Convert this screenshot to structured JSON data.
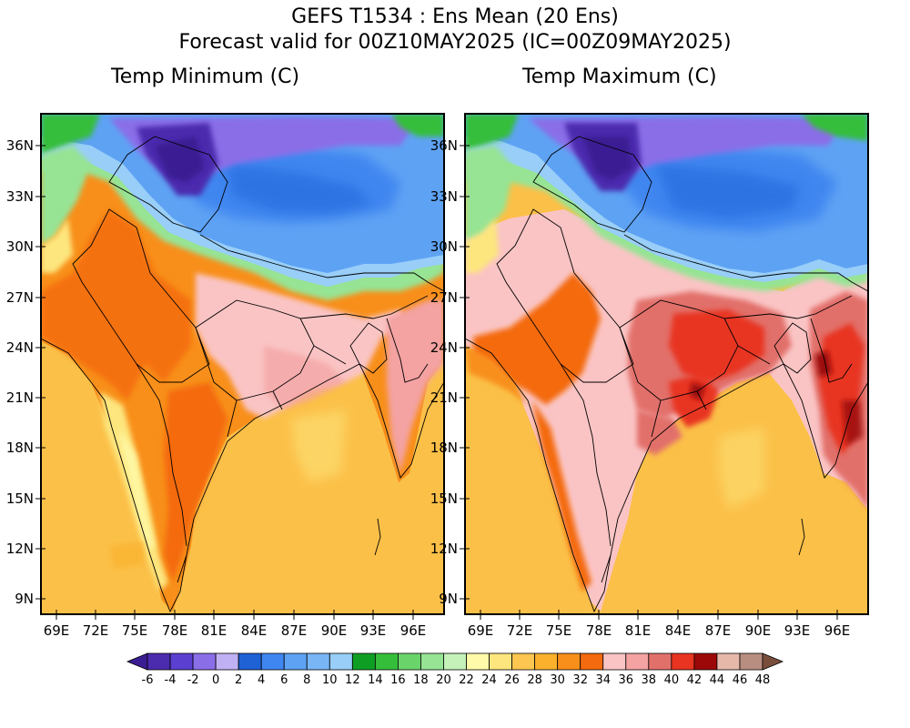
{
  "header": {
    "line1": "GEFS T1534 : Ens Mean (20 Ens)",
    "line2": "Forecast valid for 00Z10MAY2025 (IC=00Z09MAY2025)"
  },
  "panels": [
    {
      "title": "Temp Minimum (C)",
      "variable": "tmin"
    },
    {
      "title": "Temp Maximum (C)",
      "variable": "tmax"
    }
  ],
  "lat_labels": [
    "36N",
    "33N",
    "30N",
    "27N",
    "24N",
    "21N",
    "18N",
    "15N",
    "12N",
    "9N"
  ],
  "lon_labels": [
    "69E",
    "72E",
    "75E",
    "78E",
    "81E",
    "84E",
    "87E",
    "90E",
    "93E",
    "96E"
  ],
  "colorbar": {
    "colors": [
      "#3a1d92",
      "#4b2cae",
      "#5a3fd0",
      "#8a6ee8",
      "#c0b0f4",
      "#1f62d6",
      "#3f86f0",
      "#5ea2f4",
      "#78b6f6",
      "#98cef8",
      "#0f9e24",
      "#34be3a",
      "#6ad46a",
      "#96e494",
      "#c4f2b8",
      "#fffaaa",
      "#fde67e",
      "#fdc650",
      "#fbb12c",
      "#f88f1a",
      "#f46a0e",
      "#fac4c4",
      "#f4a2a2",
      "#e2706a",
      "#e83420",
      "#9c0808",
      "#e6b8aa",
      "#b88e80",
      "#7a4e3c"
    ],
    "labels": [
      "-6",
      "-4",
      "-2",
      "0",
      "2",
      "4",
      "6",
      "8",
      "10",
      "12",
      "14",
      "16",
      "18",
      "20",
      "22",
      "24",
      "26",
      "28",
      "30",
      "32",
      "34",
      "36",
      "38",
      "40",
      "42",
      "44",
      "46",
      "48"
    ]
  },
  "palette": {
    "sea": "#fbc048",
    "sea_warm": "#fab02c",
    "ocean_border": "#000000"
  }
}
